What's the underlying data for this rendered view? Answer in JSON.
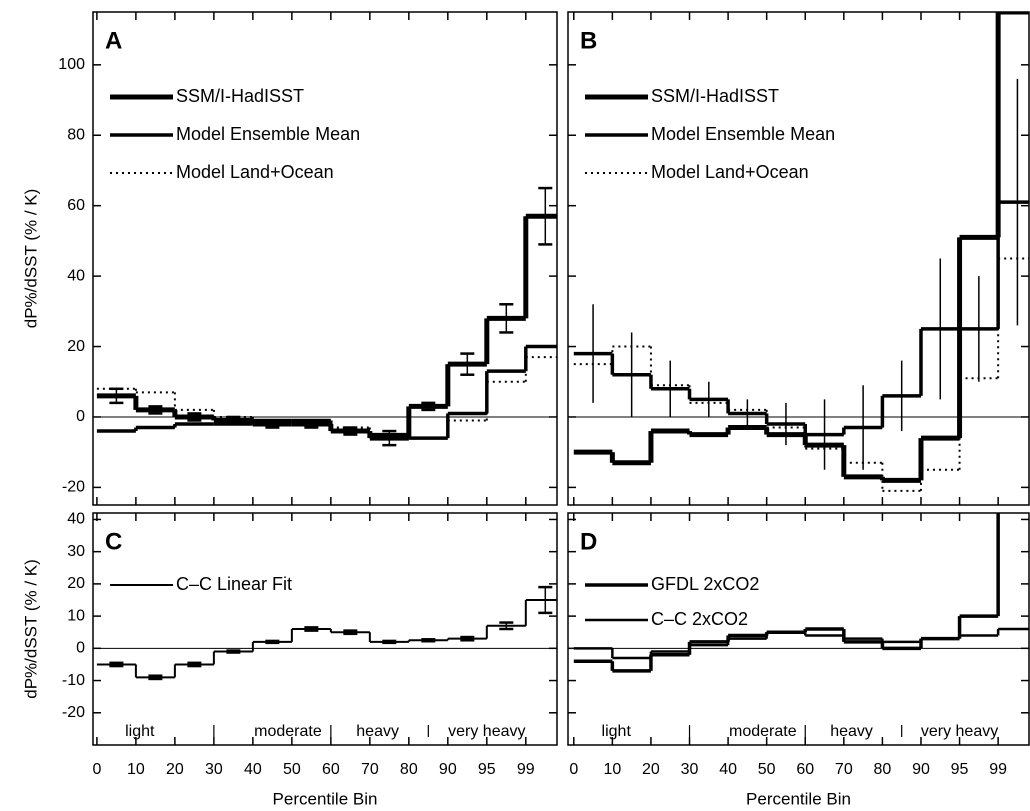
{
  "chart_data": [
    {
      "type": "step",
      "panel_label": "A",
      "ylabel": "dP%/dSST (% / K)",
      "xlim": [
        -0.1,
        11.8
      ],
      "ylim": [
        -25,
        115
      ],
      "xticks": [
        0,
        1,
        2,
        3,
        4,
        5,
        6,
        7,
        8,
        9,
        10,
        11
      ],
      "yticks": [
        -20,
        0,
        20,
        40,
        60,
        80,
        100
      ],
      "series": [
        {
          "name": "SSM/I-HadISST",
          "color": "#000",
          "linewidth": 5,
          "linestyle": "solid",
          "values": [
            6,
            2,
            0,
            -1,
            -2,
            -2,
            -4,
            -6,
            3,
            15,
            28,
            57
          ],
          "errors": [
            2,
            1,
            1,
            1,
            1,
            1,
            1,
            2,
            1,
            3,
            4,
            8
          ]
        },
        {
          "name": "Model Ensemble Mean",
          "color": "#000",
          "linewidth": 3.5,
          "linestyle": "solid",
          "values": [
            -4,
            -3,
            -2,
            -2,
            -1,
            -1,
            -4,
            -5,
            -6,
            1,
            13,
            20
          ]
        },
        {
          "name": "Model Land+Ocean",
          "color": "#000",
          "linewidth": 2,
          "linestyle": "dotted",
          "values": [
            8,
            7,
            2,
            0,
            -1,
            -2,
            -3,
            -6,
            -6,
            -1,
            10,
            17
          ]
        }
      ]
    },
    {
      "type": "step",
      "panel_label": "B",
      "xlim": [
        -0.15,
        11.8
      ],
      "ylim": [
        -25,
        115
      ],
      "xticks": [
        0,
        1,
        2,
        3,
        4,
        5,
        6,
        7,
        8,
        9,
        10,
        11
      ],
      "yticks": [
        -20,
        0,
        20,
        40,
        60,
        80,
        100
      ],
      "series": [
        {
          "name": "SSM/I-HadISST",
          "color": "#000",
          "linewidth": 5,
          "linestyle": "solid",
          "values": [
            -10,
            -13,
            -4,
            -5,
            -3,
            -5,
            -8,
            -17,
            -18,
            -6,
            51,
            115
          ]
        },
        {
          "name": "Model Ensemble Mean",
          "color": "#000",
          "linewidth": 3.5,
          "linestyle": "solid",
          "values": [
            18,
            12,
            8,
            5,
            1,
            -2,
            -5,
            -3,
            6,
            25,
            25,
            61
          ],
          "errors": [
            14,
            12,
            8,
            5,
            4,
            6,
            10,
            12,
            10,
            20,
            15,
            35
          ]
        },
        {
          "name": "Model Land+Ocean",
          "color": "#000",
          "linewidth": 2,
          "linestyle": "dotted",
          "values": [
            15,
            20,
            9,
            4,
            2,
            -3,
            -9,
            -13,
            -21,
            -15,
            11,
            45
          ]
        }
      ]
    },
    {
      "type": "step",
      "panel_label": "C",
      "ylabel": "dP%/dSST (% / K)",
      "xlabel": "Percentile Bin",
      "xlim": [
        -0.1,
        11.8
      ],
      "ylim": [
        -30,
        42
      ],
      "xticks": [
        {
          "value": 0,
          "label": "0"
        },
        {
          "value": 1,
          "label": "10"
        },
        {
          "value": 2,
          "label": "20"
        },
        {
          "value": 3,
          "label": "30"
        },
        {
          "value": 4,
          "label": "40"
        },
        {
          "value": 5,
          "label": "50"
        },
        {
          "value": 6,
          "label": "60"
        },
        {
          "value": 7,
          "label": "70"
        },
        {
          "value": 8,
          "label": "80"
        },
        {
          "value": 9,
          "label": "90"
        },
        {
          "value": 10,
          "label": "95"
        },
        {
          "value": 11,
          "label": "99"
        }
      ],
      "yticks": [
        -20,
        -10,
        0,
        10,
        20,
        30,
        40
      ],
      "annotations": [
        "light",
        "moderate",
        "heavy",
        "very heavy"
      ],
      "series": [
        {
          "name": "C–C Linear Fit",
          "color": "#000",
          "linewidth": 2,
          "linestyle": "solid",
          "values": [
            -5,
            -9,
            -5,
            -1,
            2,
            6,
            5,
            2,
            2.5,
            3,
            7,
            15
          ],
          "errors": [
            0.5,
            0.5,
            0.5,
            0.3,
            0.3,
            0.5,
            0.5,
            0.3,
            0.3,
            0.5,
            1,
            4
          ]
        }
      ]
    },
    {
      "type": "step",
      "panel_label": "D",
      "xlabel": "Percentile Bin",
      "xlim": [
        -0.15,
        11.8
      ],
      "ylim": [
        -30,
        42
      ],
      "xticks": [
        {
          "value": 0,
          "label": "0"
        },
        {
          "value": 1,
          "label": "10"
        },
        {
          "value": 2,
          "label": "20"
        },
        {
          "value": 3,
          "label": "30"
        },
        {
          "value": 4,
          "label": "40"
        },
        {
          "value": 5,
          "label": "50"
        },
        {
          "value": 6,
          "label": "60"
        },
        {
          "value": 7,
          "label": "70"
        },
        {
          "value": 8,
          "label": "80"
        },
        {
          "value": 9,
          "label": "90"
        },
        {
          "value": 10,
          "label": "95"
        },
        {
          "value": 11,
          "label": "99"
        }
      ],
      "yticks": [
        -20,
        -10,
        0,
        10,
        20,
        30,
        40
      ],
      "annotations": [
        "light",
        "moderate",
        "heavy",
        "very heavy"
      ],
      "series": [
        {
          "name": "GFDL 2xCO2",
          "color": "#000",
          "linewidth": 3.5,
          "linestyle": "solid",
          "values": [
            -4,
            -7,
            -2,
            2,
            4,
            5,
            6,
            2,
            0,
            3,
            10,
            43
          ]
        },
        {
          "name": "C–C 2xCO2",
          "color": "#000",
          "linewidth": 2.5,
          "linestyle": "solid",
          "values": [
            0,
            -3,
            -1,
            1,
            3,
            5,
            4,
            3,
            2,
            3,
            4,
            6
          ]
        }
      ]
    }
  ]
}
